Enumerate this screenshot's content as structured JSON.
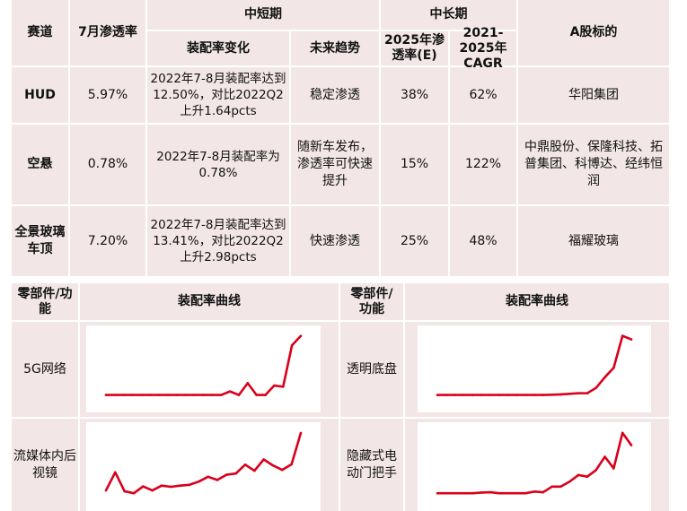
{
  "top_table": {
    "headers": {
      "track": "赛道",
      "july_rate": "7月渗透率",
      "short_term": "中短期",
      "long_term": "中长期",
      "install_change": "装配率变化",
      "future_trend": "未来趋势",
      "rate_2025": "2025年渗透率(E)",
      "cagr": "2021-2025年CAGR",
      "a_shares": "A股标的"
    },
    "rows": [
      {
        "track": "HUD",
        "july_rate": "5.97%",
        "install_change": "2022年7-8月装配率达到12.50%，对比2022Q2上升1.64pcts",
        "future_trend": "稳定渗透",
        "rate_2025": "38%",
        "cagr": "62%",
        "a_shares": "华阳集团"
      },
      {
        "track": "空悬",
        "july_rate": "0.78%",
        "install_change": "2022年7-8月装配率为0.78%",
        "future_trend": "随新车发布，渗透率可快速提升",
        "rate_2025": "15%",
        "cagr": "122%",
        "a_shares": "中鼎股份、保隆科技、拓普集团、科博达、经纬恒润"
      },
      {
        "track": "全景玻璃车顶",
        "july_rate": "7.20%",
        "install_change": "2022年7-8月装配率达到13.41%，对比2022Q2上升2.98pcts",
        "future_trend": "快速渗透",
        "rate_2025": "25%",
        "cagr": "48%",
        "a_shares": "福耀玻璃"
      }
    ]
  },
  "bottom_table": {
    "headers": {
      "part": "零部件/功能",
      "curve": "装配率曲线"
    },
    "line_color": "#d9001b"
  },
  "chart_data": [
    {
      "type": "line",
      "name": "5G网络",
      "values": [
        0,
        0,
        0,
        0,
        0,
        0,
        0,
        0,
        0,
        0,
        0,
        0,
        0,
        0,
        3,
        0,
        10,
        0,
        0,
        8,
        7,
        42,
        50
      ]
    },
    {
      "type": "line",
      "name": "透明底盘",
      "values": [
        0,
        0,
        0,
        0,
        0,
        0,
        0,
        0,
        0,
        0,
        0,
        0,
        0,
        0.5,
        1,
        2,
        3,
        3,
        12,
        30,
        46,
        100,
        94
      ]
    },
    {
      "type": "line",
      "name": "流媒体内后视镜",
      "values": [
        7,
        52,
        5,
        0,
        17,
        7,
        19,
        16,
        19,
        21,
        29,
        41,
        33,
        46,
        49,
        71,
        56,
        84,
        69,
        58,
        72,
        150
      ]
    },
    {
      "type": "line",
      "name": "隐藏式电动门把手",
      "values": [
        0,
        0,
        0,
        0,
        0,
        2,
        3,
        0,
        0,
        0,
        0,
        5,
        3,
        20,
        20,
        35,
        55,
        50,
        70,
        110,
        75,
        182,
        145
      ]
    }
  ]
}
